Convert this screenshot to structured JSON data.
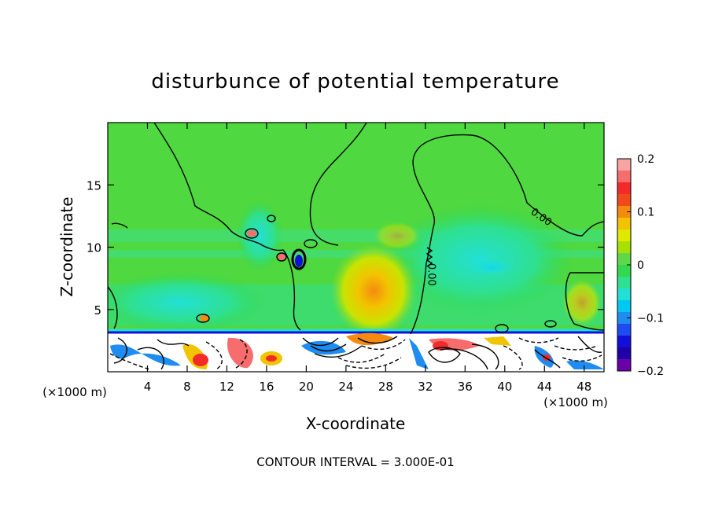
{
  "chart_data": {
    "type": "heatmap",
    "title": "disturbunce of potential temperature",
    "xlabel": "X-coordinate",
    "ylabel": "Z-coordinate",
    "x_unit_left": "(×1000 m)",
    "x_unit_right": "(×1000 m)",
    "x_ticks": [
      4,
      8,
      12,
      16,
      20,
      24,
      28,
      32,
      36,
      40,
      44,
      48
    ],
    "y_ticks": [
      5,
      10,
      15
    ],
    "xlim": [
      0,
      50
    ],
    "ylim": [
      0,
      20
    ],
    "colorbar": {
      "min": -0.2,
      "max": 0.2,
      "tick_values": [
        0.2,
        0.1,
        0,
        -0.1,
        -0.2
      ],
      "tick_labels": [
        "0.2",
        "0.1",
        "0",
        "−0.1",
        "−0.2"
      ],
      "colors": [
        "#f9a3a3",
        "#f76c6c",
        "#f22a2a",
        "#f04a1a",
        "#f58a10",
        "#f2c400",
        "#e0e800",
        "#a8e000",
        "#5fd84a",
        "#33d84e",
        "#2fe08f",
        "#22e0d6",
        "#00c8f0",
        "#1e8cf0",
        "#1f4cf0",
        "#1010d8",
        "#1f00a8",
        "#6a00a8"
      ]
    },
    "contour_labels": [
      {
        "text": "0.00",
        "x": 43.5,
        "y": 12.2
      },
      {
        "text": "0.00",
        "x": 32.3,
        "y": 7.8
      }
    ],
    "footer": "CONTOUR INTERVAL = 3.000E-01"
  }
}
